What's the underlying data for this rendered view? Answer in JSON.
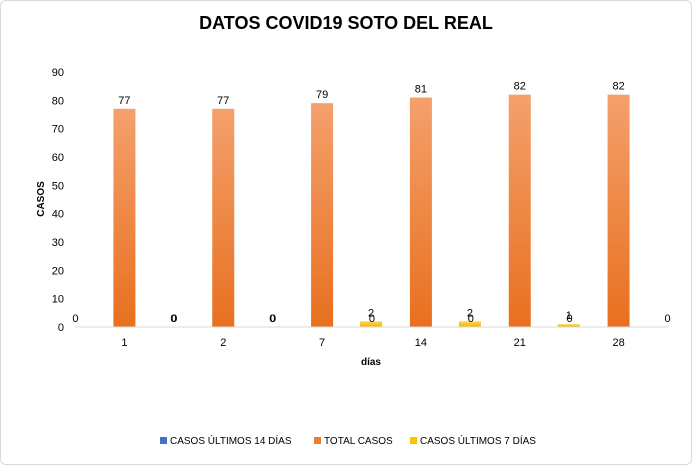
{
  "chart_data": {
    "type": "bar",
    "title": "DATOS COVID19 SOTO DEL REAL",
    "xlabel": "días",
    "ylabel": "CASOS",
    "categories": [
      "1",
      "2",
      "7",
      "14",
      "21",
      "28"
    ],
    "series": [
      {
        "name": "CASOS ÚLTIMOS 14 DÍAS",
        "values": [
          0,
          0,
          0,
          0,
          0,
          0
        ],
        "color": "#4472c4"
      },
      {
        "name": "TOTAL CASOS",
        "values": [
          77,
          77,
          79,
          81,
          82,
          82
        ],
        "color": "#ed7d31"
      },
      {
        "name": "CASOS ÚLTIMOS 7 DÍAS",
        "values": [
          0,
          0,
          2,
          2,
          1,
          0
        ],
        "color": "#ffc000"
      }
    ],
    "ylim": [
      0,
      90
    ],
    "yticks": [
      0,
      10,
      20,
      30,
      40,
      50,
      60,
      70,
      80,
      90
    ],
    "grid": false,
    "legend_position": "bottom",
    "data_labels": true
  }
}
